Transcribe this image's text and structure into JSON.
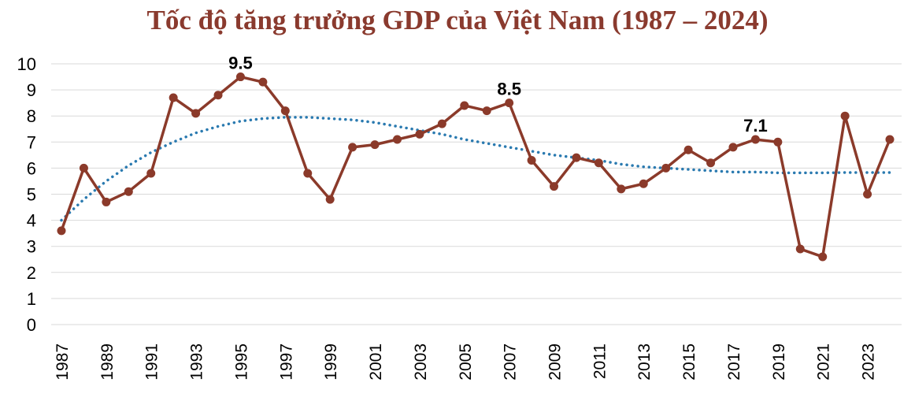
{
  "chart_data": {
    "type": "line",
    "title": "Tốc độ tăng trưởng GDP của Việt Nam (1987 – 2024)",
    "xlabel": "",
    "ylabel": "",
    "ylim": [
      0,
      10
    ],
    "yticks": [
      "0",
      "1",
      "2",
      "3",
      "4",
      "5",
      "6",
      "7",
      "8",
      "9",
      "10"
    ],
    "xtick_labels": [
      "1987",
      "1989",
      "1991",
      "1993",
      "1995",
      "1997",
      "1999",
      "2001",
      "2003",
      "2005",
      "2007",
      "2009",
      "2011",
      "2013",
      "2015",
      "2017",
      "2019",
      "2021",
      "2023"
    ],
    "grid": "horizontal",
    "legend": "none",
    "x": [
      1987,
      1988,
      1989,
      1990,
      1991,
      1992,
      1993,
      1994,
      1995,
      1996,
      1997,
      1998,
      1999,
      2000,
      2001,
      2002,
      2003,
      2004,
      2005,
      2006,
      2007,
      2008,
      2009,
      2010,
      2011,
      2012,
      2013,
      2014,
      2015,
      2016,
      2017,
      2018,
      2019,
      2020,
      2021,
      2022,
      2023,
      2024
    ],
    "series": [
      {
        "values": [
          3.6,
          6.0,
          4.7,
          5.1,
          5.8,
          8.7,
          8.1,
          8.8,
          9.5,
          9.3,
          8.2,
          5.8,
          4.8,
          6.8,
          6.9,
          7.1,
          7.3,
          7.7,
          8.4,
          8.2,
          8.5,
          6.3,
          5.3,
          6.4,
          6.2,
          5.2,
          5.4,
          6.0,
          6.7,
          6.2,
          6.8,
          7.1,
          7.0,
          2.9,
          2.6,
          8.0,
          5.0,
          7.1
        ],
        "color": "#8b3a2a"
      },
      {
        "values": [
          4.0,
          4.8,
          5.5,
          6.1,
          6.6,
          7.0,
          7.35,
          7.6,
          7.8,
          7.9,
          7.95,
          7.95,
          7.9,
          7.85,
          7.75,
          7.6,
          7.45,
          7.3,
          7.1,
          6.95,
          6.8,
          6.65,
          6.5,
          6.4,
          6.3,
          6.15,
          6.05,
          6.0,
          5.95,
          5.9,
          5.85,
          5.85,
          5.82,
          5.82,
          5.82,
          5.83,
          5.83,
          5.83
        ],
        "color": "#2a7ab0",
        "style": "dotted"
      }
    ],
    "annotations": [
      {
        "x": 1995,
        "y": 9.5,
        "text": "9.5"
      },
      {
        "x": 2007,
        "y": 8.5,
        "text": "8.5"
      },
      {
        "x": 2018,
        "y": 7.1,
        "text": "7.1"
      }
    ]
  }
}
